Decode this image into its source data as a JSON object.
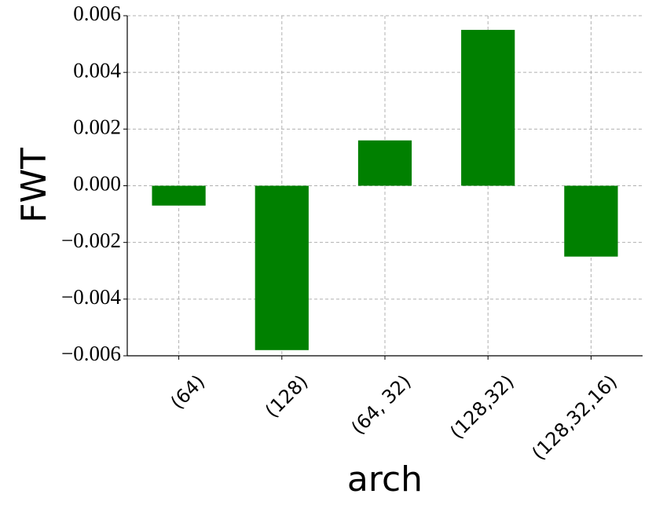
{
  "chart_data": {
    "type": "bar",
    "categories": [
      "(64)",
      "(128)",
      "(64, 32)",
      "(128,32)",
      "(128,32,16)"
    ],
    "values": [
      -0.0007,
      -0.0058,
      0.0016,
      0.0055,
      -0.0025
    ],
    "color": "#008000",
    "xlabel": "arch",
    "ylabel": "FWT",
    "ylim": [
      -0.006,
      0.006
    ],
    "yticks": [
      {
        "value": -0.006,
        "label": "−0.006"
      },
      {
        "value": -0.004,
        "label": "−0.004"
      },
      {
        "value": -0.002,
        "label": "−0.002"
      },
      {
        "value": 0,
        "label": "0.000"
      },
      {
        "value": 0.002,
        "label": "0.002"
      },
      {
        "value": 0.004,
        "label": "0.004"
      },
      {
        "value": 0.006,
        "label": "0.006"
      }
    ],
    "grid": true
  }
}
